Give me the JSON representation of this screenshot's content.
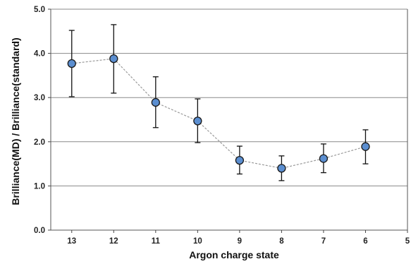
{
  "chart_data": {
    "type": "scatter",
    "xlabel": "Argon charge state",
    "ylabel": "Brilliance(MD) / Brilliance(standard)",
    "x_ticks": [
      "13",
      "12",
      "11",
      "10",
      "9",
      "8",
      "7",
      "6",
      "5"
    ],
    "y_ticks": [
      "0.0",
      "1.0",
      "2.0",
      "3.0",
      "4.0",
      "5.0"
    ],
    "ylim": [
      0,
      5
    ],
    "xlim": [
      13.5,
      5
    ],
    "x_reversed": true,
    "grid": "horizontal",
    "connector": "dashed",
    "marker_color": "#5b8ed0",
    "series": [
      {
        "x": [
          13,
          12,
          11,
          10,
          9,
          8,
          7,
          6
        ],
        "y": [
          3.77,
          3.88,
          2.89,
          2.47,
          1.58,
          1.4,
          1.62,
          1.89
        ],
        "y_upper": [
          4.52,
          4.65,
          3.47,
          2.97,
          1.9,
          1.68,
          1.95,
          2.27
        ],
        "y_lower": [
          3.02,
          3.1,
          2.32,
          1.98,
          1.27,
          1.12,
          1.3,
          1.5
        ]
      }
    ]
  }
}
